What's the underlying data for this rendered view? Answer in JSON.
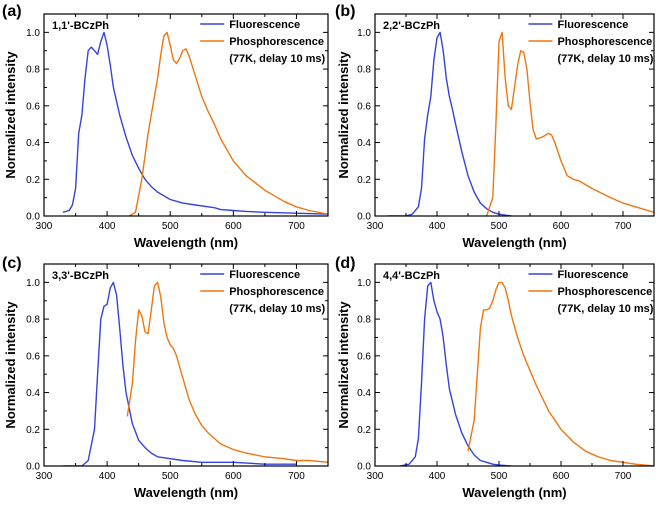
{
  "chart_data": [
    {
      "type": "line",
      "panel_label": "(a)",
      "title": "1,1'-BCzPh",
      "xlabel": "Wavelength (nm)",
      "ylabel": "Normalized intensity",
      "xlim": [
        300,
        750
      ],
      "ylim": [
        0,
        1.1
      ],
      "xticks": [
        300,
        400,
        500,
        600,
        700
      ],
      "yticks": [
        0.0,
        0.2,
        0.4,
        0.6,
        0.8,
        1.0
      ],
      "legend_position": "top-right",
      "legend_note": "(77K, delay 10 ms)",
      "series": [
        {
          "name": "Fluorescence",
          "color": "#3344dd",
          "x": [
            330,
            340,
            345,
            350,
            355,
            360,
            365,
            370,
            375,
            380,
            385,
            390,
            395,
            400,
            405,
            410,
            420,
            430,
            440,
            450,
            460,
            470,
            480,
            490,
            500,
            520,
            540,
            560,
            570,
            580,
            600,
            620,
            650,
            700,
            750
          ],
          "y": [
            0.02,
            0.03,
            0.06,
            0.15,
            0.45,
            0.55,
            0.75,
            0.9,
            0.92,
            0.9,
            0.88,
            0.95,
            1.0,
            0.93,
            0.82,
            0.7,
            0.55,
            0.43,
            0.33,
            0.26,
            0.2,
            0.16,
            0.13,
            0.11,
            0.09,
            0.07,
            0.06,
            0.05,
            0.045,
            0.035,
            0.03,
            0.025,
            0.02,
            0.015,
            0.01
          ]
        },
        {
          "name": "Phosphorescence",
          "color": "#ee7711",
          "x": [
            435,
            445,
            455,
            465,
            475,
            480,
            485,
            490,
            495,
            500,
            505,
            510,
            515,
            520,
            525,
            530,
            540,
            550,
            560,
            570,
            580,
            600,
            620,
            650,
            680,
            700,
            720,
            750
          ],
          "y": [
            0.0,
            0.02,
            0.2,
            0.45,
            0.65,
            0.75,
            0.88,
            0.98,
            1.0,
            0.93,
            0.85,
            0.83,
            0.86,
            0.9,
            0.91,
            0.87,
            0.76,
            0.65,
            0.57,
            0.5,
            0.42,
            0.3,
            0.22,
            0.14,
            0.08,
            0.05,
            0.03,
            0.01
          ]
        }
      ]
    },
    {
      "type": "line",
      "panel_label": "(b)",
      "title": "2,2'-BCzPh",
      "xlabel": "Wavelength (nm)",
      "ylabel": "Normalized intensity",
      "xlim": [
        300,
        750
      ],
      "ylim": [
        0,
        1.1
      ],
      "xticks": [
        300,
        400,
        500,
        600,
        700
      ],
      "yticks": [
        0.0,
        0.2,
        0.4,
        0.6,
        0.8,
        1.0
      ],
      "legend_position": "top-right",
      "legend_note": "(77K, delay 10 ms)",
      "series": [
        {
          "name": "Fluorescence",
          "color": "#3344dd",
          "x": [
            320,
            350,
            360,
            370,
            375,
            380,
            385,
            390,
            395,
            400,
            405,
            410,
            415,
            420,
            425,
            430,
            440,
            450,
            460,
            470,
            480,
            490,
            500,
            520
          ],
          "y": [
            0.0,
            0.0,
            0.01,
            0.05,
            0.15,
            0.42,
            0.55,
            0.65,
            0.85,
            0.97,
            1.0,
            0.9,
            0.75,
            0.65,
            0.58,
            0.5,
            0.35,
            0.22,
            0.13,
            0.07,
            0.04,
            0.02,
            0.01,
            0.0
          ]
        },
        {
          "name": "Phosphorescence",
          "color": "#ee7711",
          "x": [
            480,
            490,
            495,
            500,
            505,
            510,
            515,
            520,
            525,
            530,
            535,
            540,
            545,
            550,
            555,
            560,
            570,
            580,
            585,
            590,
            600,
            610,
            620,
            630,
            650,
            680,
            700,
            720,
            750
          ],
          "y": [
            0.0,
            0.1,
            0.5,
            0.95,
            1.0,
            0.75,
            0.6,
            0.58,
            0.7,
            0.82,
            0.9,
            0.89,
            0.8,
            0.62,
            0.47,
            0.42,
            0.43,
            0.45,
            0.44,
            0.4,
            0.3,
            0.22,
            0.2,
            0.19,
            0.15,
            0.1,
            0.07,
            0.05,
            0.02
          ]
        }
      ]
    },
    {
      "type": "line",
      "panel_label": "(c)",
      "title": "3,3'-BCzPh",
      "xlabel": "Wavelength (nm)",
      "ylabel": "Normalized intensity",
      "xlim": [
        300,
        750
      ],
      "ylim": [
        0,
        1.1
      ],
      "xticks": [
        300,
        400,
        500,
        600,
        700
      ],
      "yticks": [
        0.0,
        0.2,
        0.4,
        0.6,
        0.8,
        1.0
      ],
      "legend_position": "top-right",
      "legend_note": "(77K, delay 10 ms)",
      "series": [
        {
          "name": "Fluorescence",
          "color": "#3344dd",
          "x": [
            330,
            360,
            370,
            380,
            385,
            390,
            395,
            400,
            405,
            410,
            415,
            420,
            425,
            430,
            440,
            450,
            460,
            470,
            480,
            500,
            520,
            550,
            600,
            650,
            700
          ],
          "y": [
            0.0,
            0.0,
            0.03,
            0.2,
            0.5,
            0.8,
            0.87,
            0.88,
            0.97,
            1.0,
            0.93,
            0.75,
            0.55,
            0.4,
            0.23,
            0.14,
            0.1,
            0.07,
            0.05,
            0.04,
            0.03,
            0.02,
            0.02,
            0.01,
            0.01
          ]
        },
        {
          "name": "Phosphorescence",
          "color": "#ee7711",
          "x": [
            432,
            440,
            445,
            450,
            455,
            460,
            465,
            470,
            475,
            480,
            485,
            490,
            495,
            500,
            505,
            510,
            520,
            530,
            540,
            550,
            560,
            580,
            600,
            620,
            650,
            680,
            700,
            720,
            750
          ],
          "y": [
            0.27,
            0.45,
            0.68,
            0.85,
            0.82,
            0.73,
            0.72,
            0.85,
            0.98,
            1.0,
            0.92,
            0.78,
            0.7,
            0.66,
            0.64,
            0.6,
            0.48,
            0.36,
            0.28,
            0.22,
            0.18,
            0.12,
            0.09,
            0.07,
            0.05,
            0.04,
            0.03,
            0.03,
            0.02
          ]
        }
      ]
    },
    {
      "type": "line",
      "panel_label": "(d)",
      "title": "4,4'-BCzPh",
      "xlabel": "Wavelength (nm)",
      "ylabel": "Normalized intensity",
      "xlim": [
        300,
        750
      ],
      "ylim": [
        0,
        1.1
      ],
      "xticks": [
        300,
        400,
        500,
        600,
        700
      ],
      "yticks": [
        0.0,
        0.2,
        0.4,
        0.6,
        0.8,
        1.0
      ],
      "legend_position": "top-right",
      "legend_note": "(77K, delay 10 ms)",
      "series": [
        {
          "name": "Fluorescence",
          "color": "#3344dd",
          "x": [
            340,
            355,
            365,
            370,
            375,
            380,
            385,
            390,
            395,
            400,
            405,
            410,
            415,
            420,
            425,
            430,
            440,
            450,
            460,
            470,
            480,
            490,
            500,
            520
          ],
          "y": [
            0.0,
            0.01,
            0.05,
            0.15,
            0.45,
            0.8,
            0.98,
            1.0,
            0.9,
            0.84,
            0.8,
            0.7,
            0.55,
            0.42,
            0.35,
            0.28,
            0.18,
            0.11,
            0.06,
            0.03,
            0.02,
            0.01,
            0.005,
            0.0
          ]
        },
        {
          "name": "Phosphorescence",
          "color": "#ee7711",
          "x": [
            450,
            460,
            465,
            470,
            475,
            480,
            485,
            490,
            495,
            500,
            505,
            510,
            515,
            520,
            530,
            540,
            550,
            560,
            570,
            580,
            600,
            620,
            640,
            660,
            680,
            700,
            720,
            750
          ],
          "y": [
            0.08,
            0.25,
            0.5,
            0.75,
            0.85,
            0.85,
            0.86,
            0.9,
            0.96,
            1.0,
            1.0,
            0.97,
            0.9,
            0.82,
            0.7,
            0.6,
            0.52,
            0.44,
            0.37,
            0.3,
            0.2,
            0.13,
            0.08,
            0.05,
            0.03,
            0.02,
            0.01,
            0.0
          ]
        }
      ]
    }
  ]
}
